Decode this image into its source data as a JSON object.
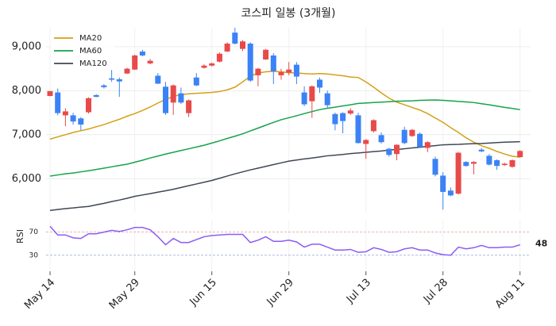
{
  "chart_data": {
    "type": "candlestick",
    "title": "코스피 일봉 (3개월)",
    "categories": [
      "May 14",
      null,
      null,
      null,
      null,
      null,
      null,
      null,
      null,
      null,
      null,
      "May 29",
      null,
      null,
      null,
      null,
      null,
      null,
      null,
      null,
      null,
      "Jun 15",
      null,
      null,
      null,
      null,
      null,
      null,
      null,
      null,
      null,
      "Jun 29",
      null,
      null,
      null,
      null,
      null,
      null,
      null,
      null,
      null,
      "Jul 13",
      null,
      null,
      null,
      null,
      null,
      null,
      null,
      null,
      null,
      "Jul 28",
      null,
      null,
      null,
      null,
      null,
      null,
      null,
      null,
      null,
      "Aug 11"
    ],
    "open": [
      7880,
      7960,
      7440,
      7440,
      7370,
      7510,
      7900,
      8120,
      8280,
      8260,
      8390,
      8480,
      8890,
      8620,
      8340,
      8090,
      7730,
      7940,
      7490,
      8300,
      8520,
      8570,
      8660,
      8890,
      9320,
      8950,
      9070,
      8350,
      8710,
      8800,
      8350,
      8410,
      8590,
      7960,
      7760,
      8250,
      7940,
      7470,
      7490,
      7480,
      7440,
      6790,
      7080,
      6990,
      6680,
      6560,
      7110,
      6970,
      7020,
      6700,
      6450,
      6070,
      5730,
      5660,
      6380,
      6340,
      6660,
      6520,
      6420,
      6310,
      6270,
      6490
    ],
    "high": [
      7990,
      8050,
      7600,
      7500,
      7400,
      7850,
      7920,
      8150,
      8470,
      8300,
      8520,
      8820,
      8930,
      8720,
      8400,
      8200,
      8140,
      8070,
      7800,
      8400,
      8600,
      8640,
      8870,
      9100,
      9430,
      9150,
      9100,
      8520,
      8950,
      8850,
      8500,
      8650,
      8650,
      8100,
      8120,
      8300,
      8000,
      7500,
      7510,
      7600,
      7500,
      6900,
      7350,
      7050,
      6700,
      6780,
      7180,
      7130,
      7050,
      6850,
      6500,
      6150,
      5800,
      6610,
      6400,
      6400,
      6700,
      6560,
      6440,
      6360,
      6440,
      6650
    ],
    "low": [
      7870,
      7440,
      7190,
      7230,
      7100,
      7480,
      7850,
      8050,
      8200,
      7860,
      8380,
      8470,
      8780,
      8600,
      8150,
      7450,
      7450,
      7700,
      7400,
      8100,
      8500,
      8550,
      8640,
      8880,
      9050,
      8900,
      8200,
      8100,
      8700,
      8150,
      8250,
      8350,
      8150,
      7650,
      7380,
      7950,
      7600,
      7100,
      7030,
      7450,
      6800,
      6450,
      7050,
      6800,
      6500,
      6420,
      6780,
      6950,
      6700,
      6600,
      6050,
      5300,
      5600,
      5640,
      6270,
      6100,
      6600,
      6300,
      6200,
      6290,
      6250,
      6480
    ],
    "close": [
      7990,
      7490,
      7530,
      7300,
      7230,
      7830,
      7860,
      8080,
      8250,
      8210,
      8500,
      8800,
      8800,
      8680,
      8160,
      7490,
      8120,
      7730,
      7780,
      8120,
      8570,
      8620,
      8840,
      9070,
      9070,
      9120,
      8230,
      8500,
      8930,
      8440,
      8420,
      8480,
      8320,
      7690,
      8100,
      8070,
      7670,
      7240,
      7310,
      7550,
      6810,
      6880,
      7330,
      6830,
      6540,
      6770,
      6810,
      7110,
      6720,
      6830,
      6090,
      5700,
      5620,
      6590,
      6290,
      6380,
      6620,
      6320,
      6290,
      6340,
      6420,
      6630
    ],
    "colors": {
      "up": "#e84a4a",
      "down": "#3b82f6"
    },
    "series": [
      {
        "name": "MA20",
        "color": "#d4a017",
        "values": [
          6900,
          6950,
          7000,
          7050,
          7090,
          7130,
          7180,
          7230,
          7290,
          7350,
          7420,
          7480,
          7550,
          7630,
          7720,
          7800,
          7870,
          7910,
          7930,
          7940,
          7950,
          7960,
          7980,
          8020,
          8080,
          8200,
          8330,
          8400,
          8430,
          8440,
          8430,
          8410,
          8400,
          8390,
          8380,
          8390,
          8380,
          8360,
          8340,
          8310,
          8300,
          8200,
          8080,
          7950,
          7830,
          7740,
          7680,
          7620,
          7560,
          7480,
          7380,
          7280,
          7160,
          7050,
          6930,
          6830,
          6750,
          6690,
          6620,
          6560,
          6510,
          6490
        ]
      },
      {
        "name": "MA60",
        "color": "#16a34a",
        "values": [
          6060,
          6085,
          6110,
          6130,
          6155,
          6180,
          6210,
          6240,
          6270,
          6300,
          6330,
          6375,
          6420,
          6470,
          6515,
          6560,
          6600,
          6640,
          6680,
          6720,
          6760,
          6810,
          6860,
          6915,
          6965,
          7020,
          7085,
          7150,
          7215,
          7280,
          7340,
          7385,
          7430,
          7480,
          7525,
          7570,
          7600,
          7625,
          7655,
          7680,
          7710,
          7720,
          7730,
          7740,
          7750,
          7760,
          7765,
          7770,
          7780,
          7785,
          7790,
          7780,
          7770,
          7755,
          7745,
          7730,
          7705,
          7680,
          7650,
          7620,
          7595,
          7570
        ]
      },
      {
        "name": "MA120",
        "color": "#3f4756",
        "values": [
          5280,
          5300,
          5320,
          5335,
          5355,
          5370,
          5405,
          5440,
          5480,
          5515,
          5555,
          5600,
          5630,
          5660,
          5695,
          5725,
          5760,
          5800,
          5840,
          5880,
          5920,
          5960,
          6010,
          6060,
          6110,
          6155,
          6200,
          6240,
          6280,
          6320,
          6360,
          6400,
          6425,
          6450,
          6470,
          6495,
          6520,
          6535,
          6550,
          6570,
          6585,
          6600,
          6615,
          6630,
          6650,
          6665,
          6680,
          6700,
          6715,
          6735,
          6750,
          6770,
          6775,
          6780,
          6790,
          6795,
          6800,
          6810,
          6820,
          6830,
          6835,
          6840
        ]
      }
    ],
    "ylim": [
      5230,
      9430
    ],
    "yticks": [
      {
        "value": 6000,
        "label": "6,000"
      },
      {
        "value": 7000,
        "label": "7,000"
      },
      {
        "value": 8000,
        "label": "8,000"
      },
      {
        "value": 9000,
        "label": "9,000"
      }
    ],
    "grid": true,
    "legend": "upper left",
    "rsi": {
      "label": "RSI",
      "color": "#8b5cf6",
      "ylim": [
        5,
        90
      ],
      "yticks": [
        30,
        70
      ],
      "tick_colors": [
        "#8fa8d8",
        "#e89a9a"
      ],
      "values": [
        80,
        65,
        65,
        60,
        59,
        67,
        67,
        70,
        73,
        71,
        74,
        78,
        78,
        74,
        62,
        48,
        59,
        52,
        52,
        57,
        62,
        64,
        65,
        66,
        66,
        66,
        52,
        56,
        62,
        54,
        54,
        56,
        53,
        44,
        49,
        49,
        44,
        39,
        39,
        40,
        35,
        36,
        43,
        40,
        35,
        36,
        41,
        43,
        39,
        39,
        34,
        31,
        30,
        44,
        41,
        43,
        47,
        43,
        43,
        44,
        44,
        48
      ]
    }
  }
}
